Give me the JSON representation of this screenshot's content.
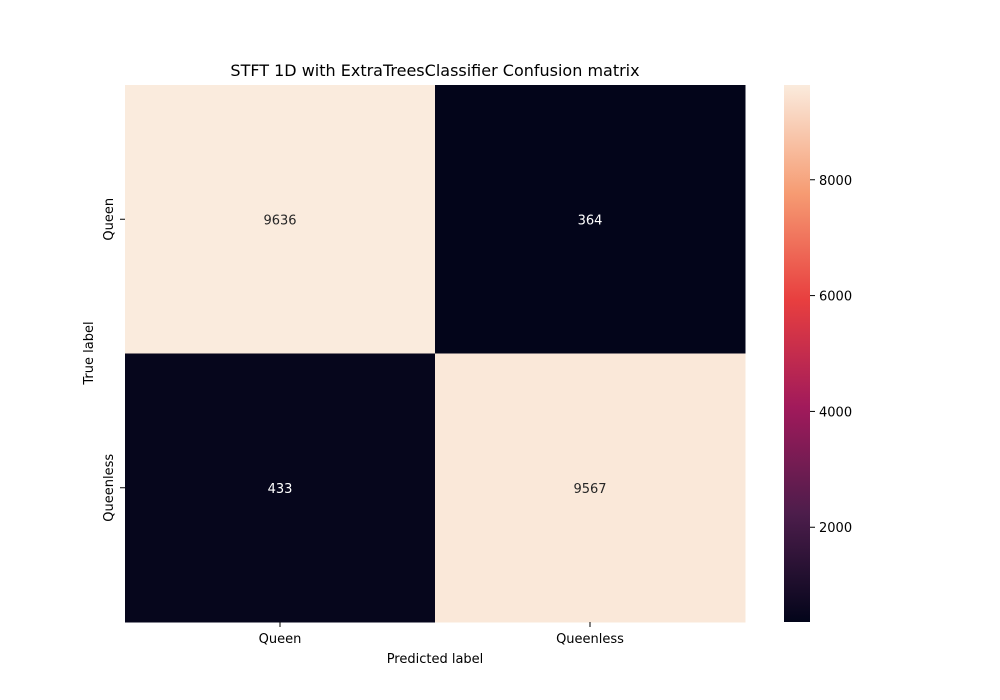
{
  "chart_data": {
    "type": "heatmap",
    "title": "STFT 1D with ExtraTreesClassifier Confusion matrix",
    "xlabel": "Predicted label",
    "ylabel": "True label",
    "x_categories": [
      "Queen",
      "Queenless"
    ],
    "y_categories": [
      "Queen",
      "Queenless"
    ],
    "values": [
      [
        9636,
        364
      ],
      [
        433,
        9567
      ]
    ],
    "colorbar": {
      "range": [
        364,
        9636
      ],
      "ticks": [
        2000,
        4000,
        6000,
        8000
      ],
      "tick_labels": [
        "2000",
        "4000",
        "6000",
        "8000"
      ]
    },
    "colormap": [
      "#03051a",
      "#4c1d4b",
      "#a11a5b",
      "#e83f3f",
      "#f69c73",
      "#faebdd"
    ],
    "grid": false
  }
}
